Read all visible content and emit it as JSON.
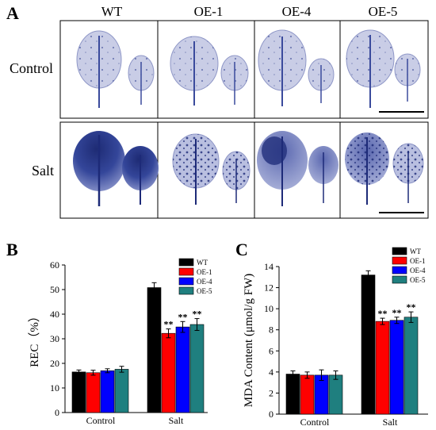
{
  "panel_a": {
    "letter": "A",
    "genotypes": [
      "WT",
      "OE-1",
      "OE-4",
      "OE-5"
    ],
    "rows": [
      "Control",
      "Salt"
    ]
  },
  "colors": {
    "WT": "#000000",
    "OE-1": "#ff0000",
    "OE-4": "#0000ff",
    "OE-5": "#1f7f7f",
    "stain": "#2a3a8c",
    "leaf_control": "#c9cde6",
    "leaf_salt": "#aab1d8"
  },
  "chart_data": [
    {
      "panel": "B",
      "type": "bar",
      "categories": [
        "Control",
        "Salt"
      ],
      "series": [
        {
          "name": "WT",
          "values": [
            16.5,
            50.8
          ],
          "errors": [
            0.8,
            2.0
          ],
          "sig": [
            "",
            ""
          ]
        },
        {
          "name": "OE-1",
          "values": [
            16.2,
            32.2
          ],
          "errors": [
            1.0,
            1.8
          ],
          "sig": [
            "",
            "**"
          ]
        },
        {
          "name": "OE-4",
          "values": [
            17.0,
            34.8
          ],
          "errors": [
            0.8,
            2.2
          ],
          "sig": [
            "",
            "**"
          ]
        },
        {
          "name": "OE-5",
          "values": [
            17.6,
            35.8
          ],
          "errors": [
            1.2,
            2.4
          ],
          "sig": [
            "",
            "**"
          ]
        }
      ],
      "ylabel": "REC（%）",
      "ylim": [
        0,
        60
      ],
      "yticks": [
        0,
        10,
        20,
        30,
        40,
        50,
        60
      ],
      "legend": "top-right"
    },
    {
      "panel": "C",
      "type": "bar",
      "categories": [
        "Control",
        "Salt"
      ],
      "series": [
        {
          "name": "WT",
          "values": [
            3.8,
            13.2
          ],
          "errors": [
            0.3,
            0.4
          ],
          "sig": [
            "",
            ""
          ]
        },
        {
          "name": "OE-1",
          "values": [
            3.7,
            8.8
          ],
          "errors": [
            0.3,
            0.3
          ],
          "sig": [
            "",
            "**"
          ]
        },
        {
          "name": "OE-4",
          "values": [
            3.7,
            8.9
          ],
          "errors": [
            0.5,
            0.3
          ],
          "sig": [
            "",
            "**"
          ]
        },
        {
          "name": "OE-5",
          "values": [
            3.7,
            9.2
          ],
          "errors": [
            0.4,
            0.5
          ],
          "sig": [
            "",
            "**"
          ]
        }
      ],
      "ylabel": "MDA Content (μmol/g FW)",
      "ylim": [
        0,
        14
      ],
      "yticks": [
        0,
        2,
        4,
        6,
        8,
        10,
        12,
        14
      ],
      "legend": "top-right"
    }
  ]
}
